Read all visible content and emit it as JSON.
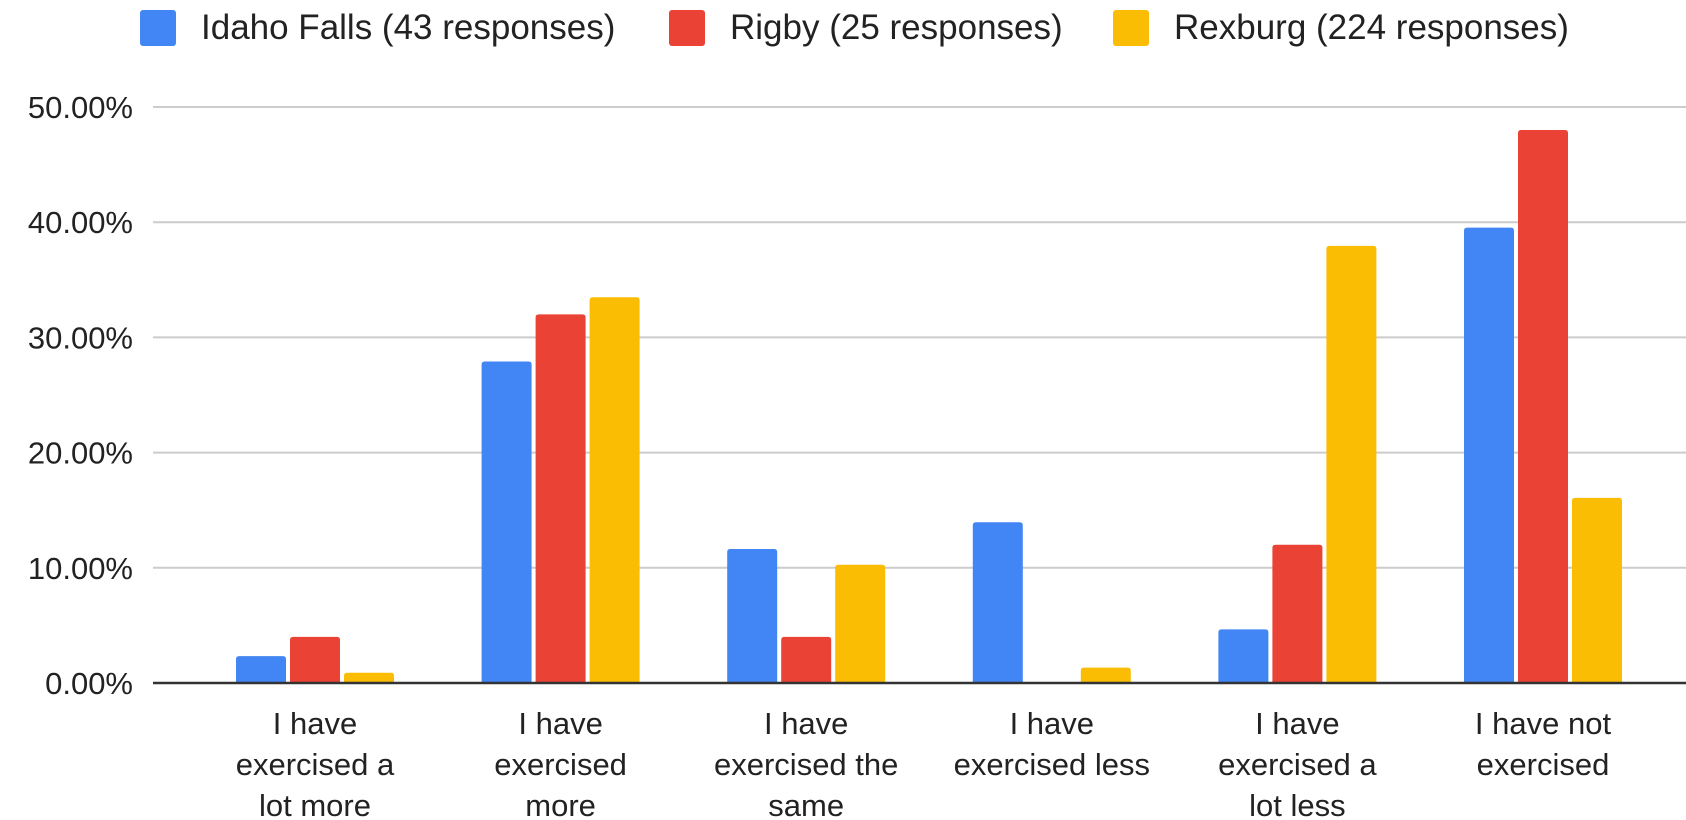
{
  "chart_data": {
    "type": "bar",
    "title": "",
    "xlabel": "",
    "ylabel": "",
    "ylim": [
      0,
      0.5
    ],
    "yticks": [
      "0.00%",
      "10.00%",
      "20.00%",
      "30.00%",
      "40.00%",
      "50.00%"
    ],
    "ytick_values": [
      0,
      0.1,
      0.2,
      0.3,
      0.4,
      0.5
    ],
    "grid": true,
    "legend_position": "top",
    "categories": [
      [
        "I have",
        "exercised a",
        "lot more"
      ],
      [
        "I have",
        "exercised",
        "more"
      ],
      [
        "I have",
        "exercised the",
        "same"
      ],
      [
        "I have",
        "exercised less"
      ],
      [
        "I have",
        "exercised a",
        "lot less"
      ],
      [
        "I have not",
        "exercised"
      ]
    ],
    "series": [
      {
        "name": "Idaho Falls (43 responses)",
        "color": "#4285F4",
        "values": [
          0.0233,
          0.2791,
          0.1163,
          0.1395,
          0.0465,
          0.3953
        ]
      },
      {
        "name": "Rigby (25 responses)",
        "color": "#EA4335",
        "values": [
          0.04,
          0.32,
          0.04,
          0.0,
          0.12,
          0.48
        ]
      },
      {
        "name": "Rexburg (224 responses)",
        "color": "#FBBC04",
        "values": [
          0.0089,
          0.3348,
          0.1027,
          0.0134,
          0.3795,
          0.1607
        ]
      }
    ]
  }
}
